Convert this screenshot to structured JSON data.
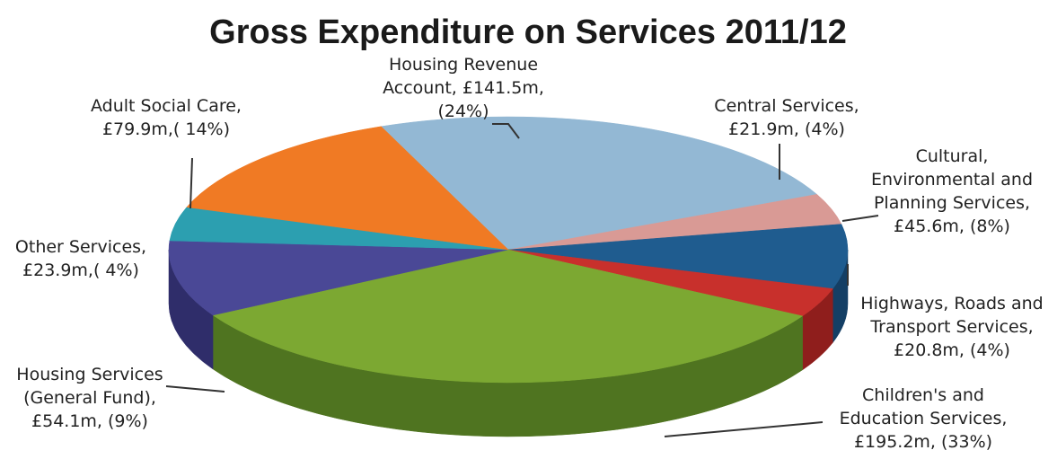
{
  "chart_data": {
    "type": "pie",
    "title": "Gross Expenditure on Services 2011/12",
    "slices": [
      {
        "name": "Housing Revenue Account",
        "value": 141.5,
        "percent": 24,
        "color": "#93b8d4",
        "side": "#6f94b2",
        "label_lines": [
          "Housing Revenue",
          "Account, £141.5m,",
          "(24%)"
        ]
      },
      {
        "name": "Central Services",
        "value": 21.9,
        "percent": 4,
        "color": "#d99a95",
        "side": "#b0706c",
        "label_lines": [
          "Central Services,",
          "£21.9m, (4%)"
        ]
      },
      {
        "name": "Cultural, Environmental and Planning Services",
        "value": 45.6,
        "percent": 8,
        "color": "#1f5c8f",
        "side": "#143f65",
        "label_lines": [
          "Cultural,",
          "Environmental and",
          "Planning Services,",
          "£45.6m, (8%)"
        ]
      },
      {
        "name": "Highways, Roads and Transport Services",
        "value": 20.8,
        "percent": 4,
        "color": "#c8302c",
        "side": "#8f1e1c",
        "label_lines": [
          "Highways, Roads and",
          "Transport Services,",
          "£20.8m, (4%)"
        ]
      },
      {
        "name": "Children's and Education Services",
        "value": 195.2,
        "percent": 33,
        "color": "#7ca832",
        "side": "#4f7420",
        "label_lines": [
          "Children's and",
          "Education Services,",
          "£195.2m, (33%)"
        ]
      },
      {
        "name": "Housing Services (General Fund)",
        "value": 54.1,
        "percent": 9,
        "color": "#4a4896",
        "side": "#2f2d6a",
        "label_lines": [
          "Housing Services",
          "(General Fund),",
          "£54.1m, (9%)"
        ]
      },
      {
        "name": "Other Services",
        "value": 23.9,
        "percent": 4,
        "color": "#2c9fb0",
        "side": "#1a6f7c",
        "label_lines": [
          "Other Services,",
          "£23.9m,( 4%)"
        ]
      },
      {
        "name": "Adult Social Care",
        "value": 79.9,
        "percent": 14,
        "color": "#f07a24",
        "side": "#b25410",
        "label_lines": [
          "Adult Social Care,",
          "£79.9m,( 14%)"
        ]
      }
    ]
  }
}
